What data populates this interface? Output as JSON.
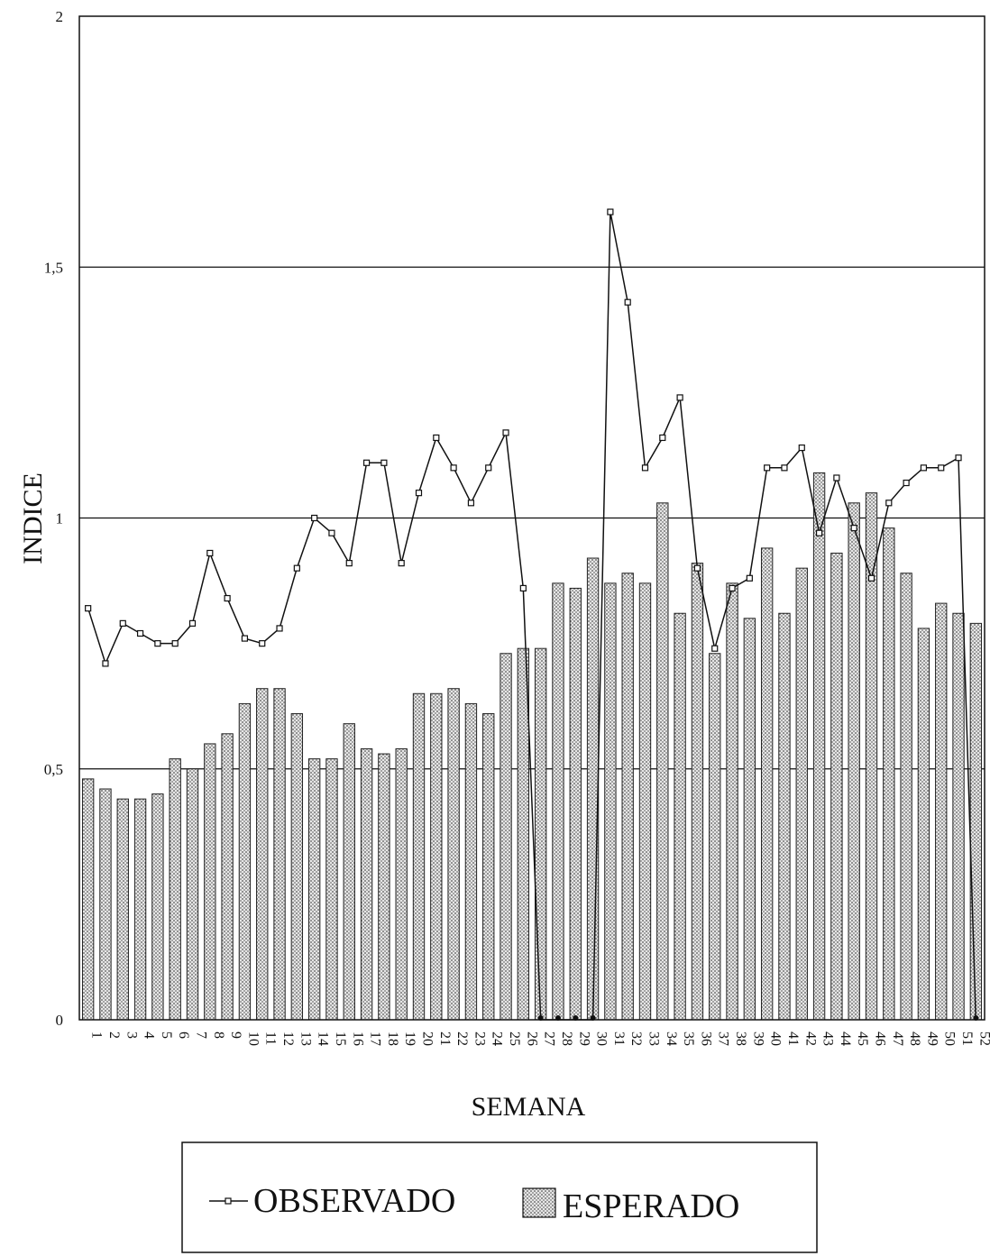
{
  "chart_data": {
    "type": "bar",
    "xlabel": "SEMANA",
    "ylabel": "INDICE",
    "ylim": [
      0,
      2
    ],
    "yticks": [
      0,
      0.5,
      1,
      1.5,
      2
    ],
    "ytick_labels": [
      "0",
      "0,5",
      "1",
      "1,5",
      "2"
    ],
    "grid": "horizontal",
    "legend_placement": "bottom",
    "categories": [
      "1",
      "2",
      "3",
      "4",
      "5",
      "6",
      "7",
      "8",
      "9",
      "10",
      "11",
      "12",
      "13",
      "14",
      "15",
      "16",
      "17",
      "18",
      "19",
      "20",
      "21",
      "22",
      "23",
      "24",
      "25",
      "26",
      "27",
      "28",
      "29",
      "30",
      "31",
      "32",
      "33",
      "34",
      "35",
      "36",
      "37",
      "38",
      "39",
      "40",
      "41",
      "42",
      "43",
      "44",
      "45",
      "46",
      "47",
      "48",
      "49",
      "50",
      "51",
      "52"
    ],
    "series": [
      {
        "name": "ESPERADO",
        "type": "bar",
        "color": "#bdbdbd",
        "values": [
          0.48,
          0.46,
          0.44,
          0.44,
          0.45,
          0.52,
          0.5,
          0.55,
          0.57,
          0.63,
          0.66,
          0.66,
          0.61,
          0.52,
          0.52,
          0.59,
          0.54,
          0.53,
          0.54,
          0.65,
          0.65,
          0.66,
          0.63,
          0.61,
          0.73,
          0.74,
          0.74,
          0.87,
          0.86,
          0.92,
          0.87,
          0.89,
          0.87,
          1.03,
          0.81,
          0.91,
          0.73,
          0.87,
          0.8,
          0.94,
          0.81,
          0.9,
          1.09,
          0.93,
          1.03,
          1.05,
          0.98,
          0.89,
          0.78,
          0.83,
          0.81,
          0.79
        ]
      },
      {
        "name": "OBSERVADO",
        "type": "line",
        "color": "#111111",
        "values": [
          0.82,
          0.71,
          0.79,
          0.77,
          0.75,
          0.75,
          0.79,
          0.93,
          0.84,
          0.76,
          0.75,
          0.78,
          0.9,
          1.0,
          0.97,
          0.91,
          1.11,
          1.11,
          0.91,
          1.05,
          1.16,
          1.1,
          1.03,
          1.1,
          1.17,
          0.86,
          0.0,
          0.0,
          0.0,
          0.0,
          1.61,
          1.43,
          1.1,
          1.16,
          1.24,
          0.9,
          0.74,
          0.86,
          0.88,
          1.1,
          1.1,
          1.14,
          0.97,
          1.08,
          0.98,
          0.88,
          1.03,
          1.07,
          1.1,
          1.1,
          1.12,
          0.0
        ]
      }
    ]
  },
  "legend": {
    "items": [
      {
        "label": "OBSERVADO",
        "symbol": "line-marker"
      },
      {
        "label": "ESPERADO",
        "symbol": "dotted-box"
      }
    ]
  }
}
